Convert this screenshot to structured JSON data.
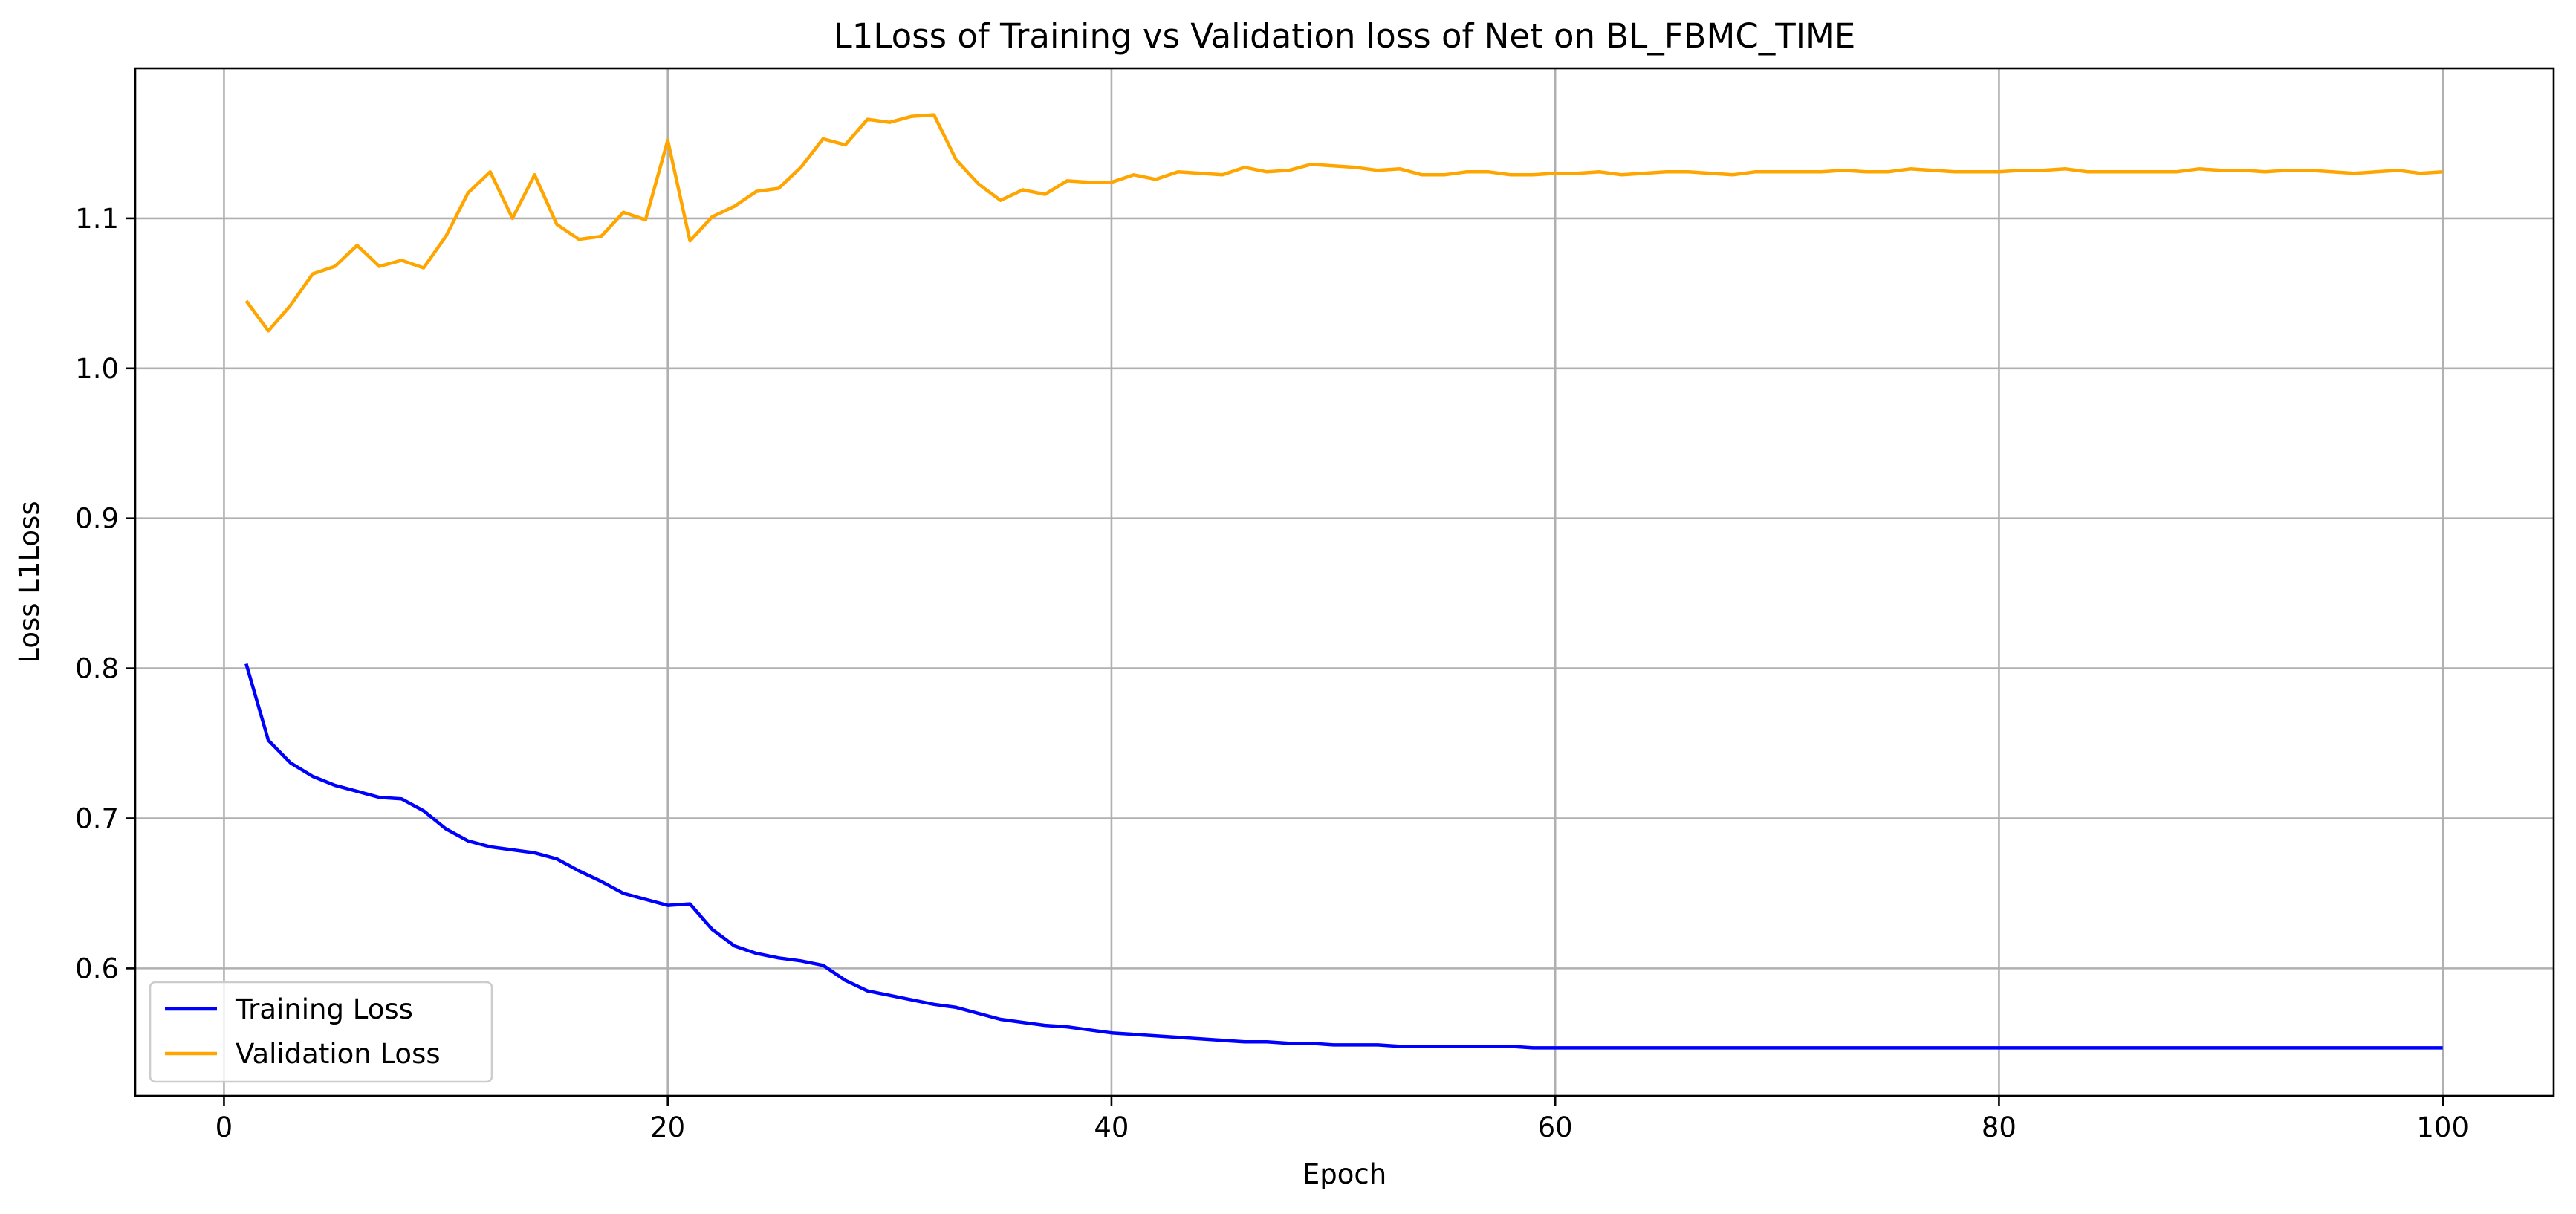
{
  "chart_data": {
    "type": "line",
    "title": "L1Loss of Training vs Validation loss of Net on BL_FBMC_TIME",
    "xlabel": "Epoch",
    "ylabel": "Loss L1Loss",
    "xlim": [
      -4,
      105
    ],
    "ylim": [
      0.515,
      1.2
    ],
    "xticks": [
      0,
      20,
      40,
      60,
      80,
      100
    ],
    "xtick_labels": [
      "0",
      "20",
      "40",
      "60",
      "80",
      "100"
    ],
    "yticks": [
      0.6,
      0.7,
      0.8,
      0.9,
      1.0,
      1.1
    ],
    "ytick_labels": [
      "0.6",
      "0.7",
      "0.8",
      "0.9",
      "1.0",
      "1.1"
    ],
    "grid": true,
    "legend_position": "bottom-left",
    "x": [
      1,
      2,
      3,
      4,
      5,
      6,
      7,
      8,
      9,
      10,
      11,
      12,
      13,
      14,
      15,
      16,
      17,
      18,
      19,
      20,
      21,
      22,
      23,
      24,
      25,
      26,
      27,
      28,
      29,
      30,
      31,
      32,
      33,
      34,
      35,
      36,
      37,
      38,
      39,
      40,
      41,
      42,
      43,
      44,
      45,
      46,
      47,
      48,
      49,
      50,
      51,
      52,
      53,
      54,
      55,
      56,
      57,
      58,
      59,
      60,
      61,
      62,
      63,
      64,
      65,
      66,
      67,
      68,
      69,
      70,
      71,
      72,
      73,
      74,
      75,
      76,
      77,
      78,
      79,
      80,
      81,
      82,
      83,
      84,
      85,
      86,
      87,
      88,
      89,
      90,
      91,
      92,
      93,
      94,
      95,
      96,
      97,
      98,
      99,
      100
    ],
    "series": [
      {
        "name": "Training Loss",
        "color": "#0000ff",
        "values": [
          0.803,
          0.752,
          0.737,
          0.728,
          0.722,
          0.718,
          0.714,
          0.713,
          0.705,
          0.693,
          0.685,
          0.681,
          0.679,
          0.677,
          0.673,
          0.665,
          0.658,
          0.65,
          0.646,
          0.642,
          0.643,
          0.626,
          0.615,
          0.61,
          0.607,
          0.605,
          0.602,
          0.592,
          0.585,
          0.582,
          0.579,
          0.576,
          0.574,
          0.57,
          0.566,
          0.564,
          0.562,
          0.561,
          0.559,
          0.557,
          0.556,
          0.555,
          0.554,
          0.553,
          0.552,
          0.551,
          0.551,
          0.55,
          0.55,
          0.549,
          0.549,
          0.549,
          0.548,
          0.548,
          0.548,
          0.548,
          0.548,
          0.548,
          0.547,
          0.547,
          0.547,
          0.547,
          0.547,
          0.547,
          0.547,
          0.547,
          0.547,
          0.547,
          0.547,
          0.547,
          0.547,
          0.547,
          0.547,
          0.547,
          0.547,
          0.547,
          0.547,
          0.547,
          0.547,
          0.547,
          0.547,
          0.547,
          0.547,
          0.547,
          0.547,
          0.547,
          0.547,
          0.547,
          0.547,
          0.547,
          0.547,
          0.547,
          0.547,
          0.547,
          0.547,
          0.547,
          0.547,
          0.547,
          0.547,
          0.547
        ]
      },
      {
        "name": "Validation Loss",
        "color": "#ffa500",
        "values": [
          1.045,
          1.025,
          1.042,
          1.063,
          1.068,
          1.082,
          1.068,
          1.072,
          1.067,
          1.088,
          1.117,
          1.131,
          1.1,
          1.129,
          1.096,
          1.086,
          1.088,
          1.104,
          1.099,
          1.152,
          1.085,
          1.101,
          1.108,
          1.118,
          1.12,
          1.134,
          1.153,
          1.149,
          1.166,
          1.164,
          1.168,
          1.169,
          1.139,
          1.123,
          1.112,
          1.119,
          1.116,
          1.125,
          1.124,
          1.124,
          1.129,
          1.126,
          1.131,
          1.13,
          1.129,
          1.134,
          1.131,
          1.132,
          1.136,
          1.135,
          1.134,
          1.132,
          1.133,
          1.129,
          1.129,
          1.131,
          1.131,
          1.129,
          1.129,
          1.13,
          1.13,
          1.131,
          1.129,
          1.13,
          1.131,
          1.131,
          1.13,
          1.129,
          1.131,
          1.131,
          1.131,
          1.131,
          1.132,
          1.131,
          1.131,
          1.133,
          1.132,
          1.131,
          1.131,
          1.131,
          1.132,
          1.132,
          1.133,
          1.131,
          1.131,
          1.131,
          1.131,
          1.131,
          1.133,
          1.132,
          1.132,
          1.131,
          1.132,
          1.132,
          1.131,
          1.13,
          1.131,
          1.132,
          1.13,
          1.131
        ]
      }
    ]
  }
}
